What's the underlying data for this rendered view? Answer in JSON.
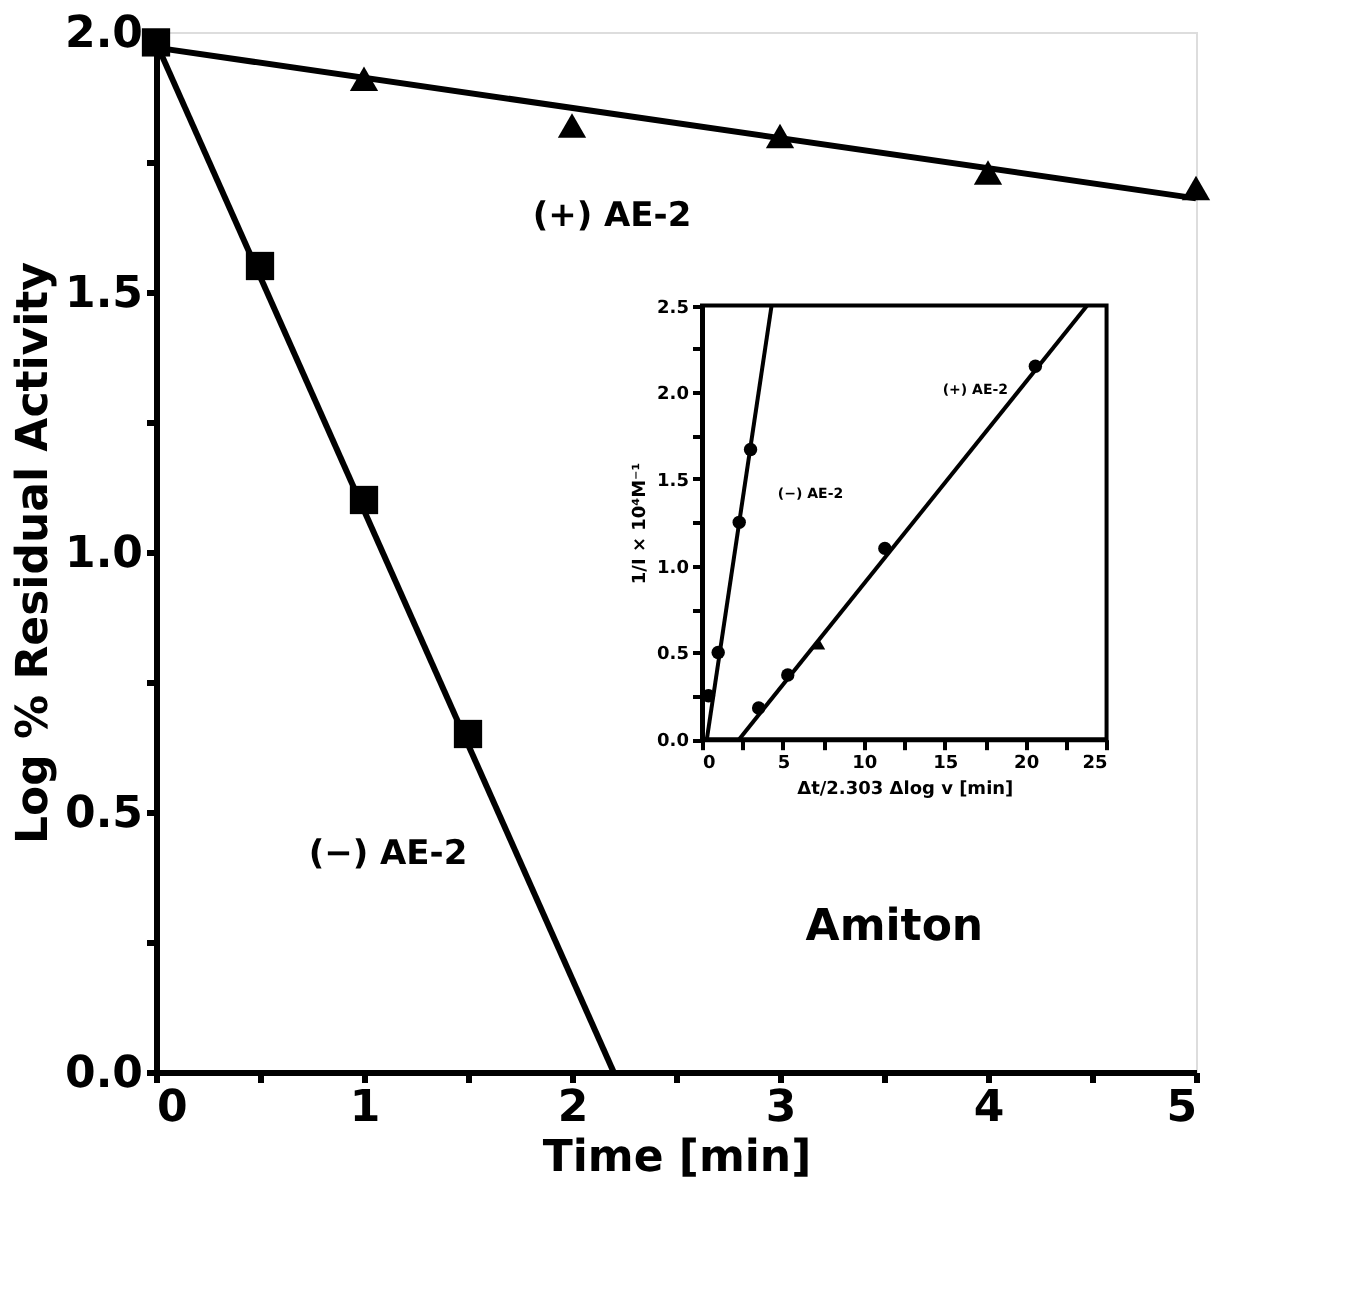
{
  "chart_data": [
    {
      "type": "scatter",
      "xlabel": "Time [min]",
      "ylabel": "Log % Residual Activity",
      "xlim": [
        0,
        5
      ],
      "ylim": [
        0,
        2.0
      ],
      "xticks": [
        0,
        {
          "value": 0.5,
          "label": null
        },
        1,
        {
          "value": 1.5,
          "label": null
        },
        2,
        {
          "value": 2.5,
          "label": null
        },
        3,
        {
          "value": 3.5,
          "label": null
        },
        4,
        {
          "value": 4.5,
          "label": null
        },
        5
      ],
      "yticks": [
        {
          "value": 0,
          "label": "0.0"
        },
        {
          "value": 0.25,
          "label": null
        },
        0.5,
        {
          "value": 0.75,
          "label": null
        },
        {
          "value": 1,
          "label": "1.0"
        },
        {
          "value": 1.25,
          "label": null
        },
        1.5,
        {
          "value": 1.75,
          "label": null
        },
        {
          "value": 2,
          "label": "2.0"
        }
      ],
      "grid": false,
      "series": [
        {
          "name": "(−) AE-2",
          "marker": "square",
          "color": "#000000",
          "x": [
            0,
            0.5,
            1,
            1.5
          ],
          "values": [
            1.98,
            1.55,
            1.1,
            0.65
          ]
        },
        {
          "name": "(+) AE-2",
          "marker": "triangle",
          "color": "#000000",
          "x": [
            1,
            2,
            3,
            4,
            5
          ],
          "values": [
            1.91,
            1.82,
            1.8,
            1.73,
            1.7
          ]
        },
        {
          "type": "line",
          "color": "#000000",
          "x": [
            0,
            2.2
          ],
          "values": [
            1.98,
            0
          ]
        },
        {
          "type": "line",
          "color": "#000000",
          "x": [
            0,
            5
          ],
          "values": [
            1.97,
            1.68
          ]
        }
      ],
      "annotations": [
        "Amiton"
      ]
    },
    {
      "type": "scatter",
      "xlabel": "Δt/2.303 Δlog v [min]",
      "ylabel": "1/I × 10⁴M⁻¹",
      "xlim": [
        0,
        25
      ],
      "ylim": [
        0,
        2.5
      ],
      "xticks": [
        0,
        {
          "value": 2.5,
          "label": null
        },
        5,
        {
          "value": 7.5,
          "label": null
        },
        10,
        {
          "value": 12.5,
          "label": null
        },
        15,
        {
          "value": 17.5,
          "label": null
        },
        20,
        {
          "value": 22.5,
          "label": null
        },
        25
      ],
      "yticks": [
        {
          "value": 0,
          "label": "0.0"
        },
        {
          "value": 0.25,
          "label": null
        },
        0.5,
        {
          "value": 0.75,
          "label": null
        },
        {
          "value": 1,
          "label": "1.0"
        },
        {
          "value": 1.25,
          "label": null
        },
        1.5,
        {
          "value": 1.75,
          "label": null
        },
        {
          "value": 2,
          "label": "2.0"
        },
        {
          "value": 2.25,
          "label": null
        },
        2.5
      ],
      "grid": false,
      "series": [
        {
          "name": "(−) AE-2",
          "marker": "circle",
          "color": "#000000",
          "x": [
            0.4,
            1.0,
            2.3,
            3.0
          ],
          "values": [
            0.25,
            0.5,
            1.25,
            1.67
          ]
        },
        {
          "name": "(+) AE-2",
          "marker": "circle",
          "color": "#000000",
          "x": [
            3.5,
            5.3,
            11.3,
            20.6
          ],
          "values": [
            0.18,
            0.37,
            1.1,
            2.15
          ]
        },
        {
          "marker": "triangle",
          "color": "#000000",
          "x": [
            7.2
          ],
          "values": [
            0.55
          ]
        },
        {
          "type": "line",
          "color": "#000000",
          "x": [
            0.3,
            4.3
          ],
          "values": [
            0,
            2.5
          ]
        },
        {
          "type": "line",
          "color": "#000000",
          "x": [
            2.3,
            23.8
          ],
          "values": [
            0,
            2.5
          ]
        }
      ]
    }
  ]
}
